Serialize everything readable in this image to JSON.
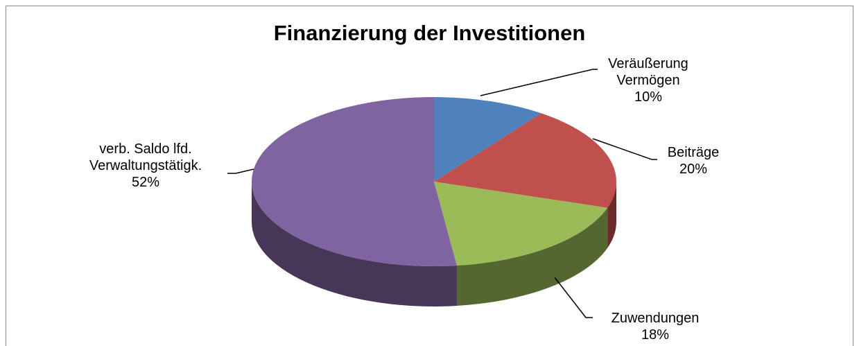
{
  "chart_data": {
    "type": "pie",
    "title": "Finanzierung der Investitionen",
    "categories": [
      "Veräußerung Vermögen",
      "Beiträge",
      "Zuwendungen",
      "verb. Saldo lfd. Verwaltungstätigk."
    ],
    "values": [
      10,
      20,
      18,
      52
    ],
    "value_labels": [
      "10%",
      "20%",
      "18%",
      "52%"
    ],
    "colors": [
      "#4f81bd",
      "#c0504d",
      "#9bbb59",
      "#8064a2"
    ]
  }
}
